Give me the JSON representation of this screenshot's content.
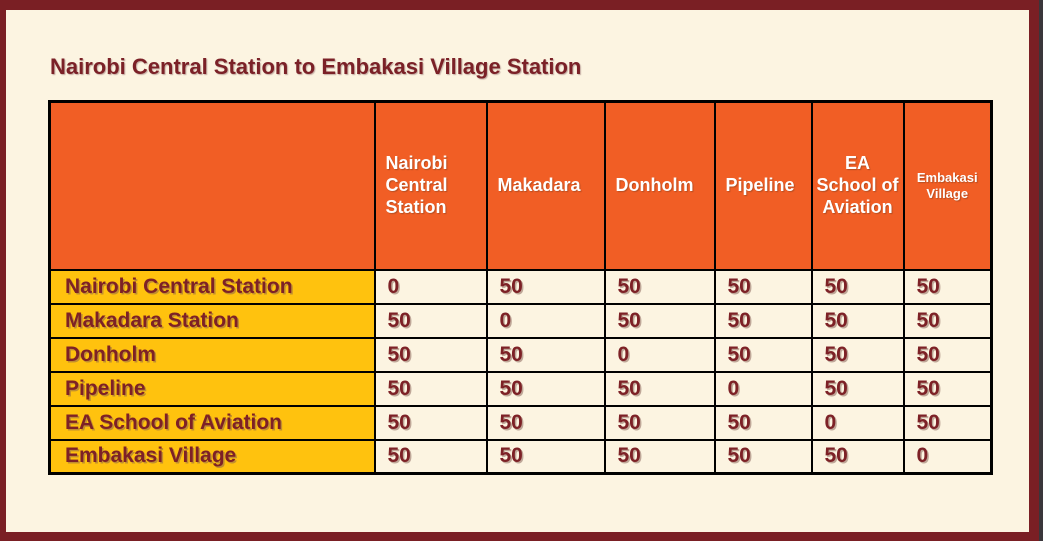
{
  "page": {
    "title": "Nairobi Central Station to Embakasi Village Station"
  },
  "colors": {
    "frame_maroon": "#7A1F24",
    "frame_edge_dark": "#3A363B",
    "slide_background": "#FCF4E1",
    "header_orange": "#F15E25",
    "header_text_white": "#FFFFFF",
    "row_header_yellow": "#FFC20E",
    "dark_red_text": "#7D2126",
    "grid_black": "#000000"
  },
  "table": {
    "column_headers": [
      "Nairobi Central Station",
      "Makadara",
      "Donholm",
      "Pipeline",
      "EA School of Aviation",
      "Embakasi Village"
    ],
    "row_headers": [
      "Nairobi Central Station",
      "Makadara Station",
      "Donholm",
      "Pipeline",
      "EA School of Aviation",
      "Embakasi Village"
    ],
    "values": [
      [
        0,
        50,
        50,
        50,
        50,
        50
      ],
      [
        50,
        0,
        50,
        50,
        50,
        50
      ],
      [
        50,
        50,
        0,
        50,
        50,
        50
      ],
      [
        50,
        50,
        50,
        0,
        50,
        50
      ],
      [
        50,
        50,
        50,
        50,
        0,
        50
      ],
      [
        50,
        50,
        50,
        50,
        50,
        0
      ]
    ]
  }
}
